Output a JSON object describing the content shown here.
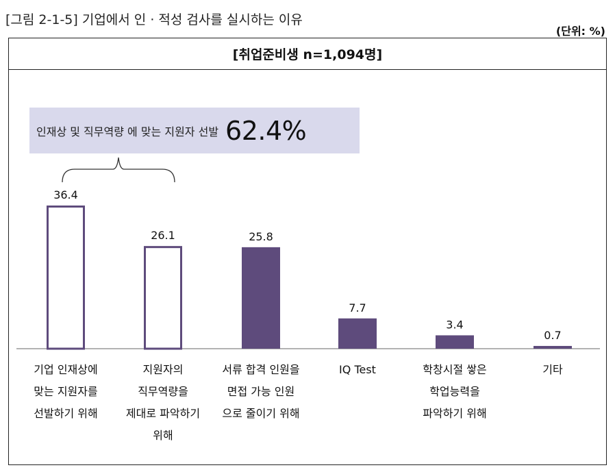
{
  "caption": "[그림 2-1-5] 기업에서 인 · 적성 검사를 실시하는 이유",
  "unit_label": "(단위: %)",
  "callout": {
    "text": "인재상 및 직무역량 에 맞는 지원자 선발",
    "value": "62.4%"
  },
  "colors": {
    "bar_fill": "#5e4b7c",
    "bar_outline": "#5e4b7c",
    "callout_bg": "#d9d9ec",
    "axis": "#999999"
  },
  "chart_data": {
    "type": "bar",
    "title": "[취업준비생 n=1,094명]",
    "categories": [
      "기업 인재상에 맞는 지원자를 선발하기 위해",
      "지원자의 직무역량을 제대로 파악하기 위해",
      "서류 합격 인원을 면접 가능 인원으로 줄이기 위해",
      "IQ Test",
      "학창시절 쌓은 학업능력을 파악하기 위해",
      "기타"
    ],
    "category_lines": [
      [
        "기업 인재상에",
        "맞는 지원자를",
        "선발하기 위해"
      ],
      [
        "지원자의",
        "직무역량을",
        "제대로 파악하기",
        "위해"
      ],
      [
        "서류 합격 인원을",
        "면접 가능 인원",
        "으로 줄이기 위해"
      ],
      [
        "IQ Test"
      ],
      [
        "학창시절 쌓은",
        "학업능력을",
        "파악하기 위해"
      ],
      [
        "기타"
      ]
    ],
    "values": [
      36.4,
      26.1,
      25.8,
      7.7,
      3.4,
      0.7
    ],
    "value_labels": [
      "36.4",
      "26.1",
      "25.8",
      "7.7",
      "3.4",
      "0.7"
    ],
    "styles": [
      "outline",
      "outline",
      "filled",
      "filled",
      "filled",
      "filled"
    ],
    "bracket_groups": [
      [
        0,
        1
      ]
    ],
    "xlabel": "",
    "ylabel": "",
    "ylim": [
      0,
      40
    ],
    "grid": false,
    "legend": "none"
  }
}
